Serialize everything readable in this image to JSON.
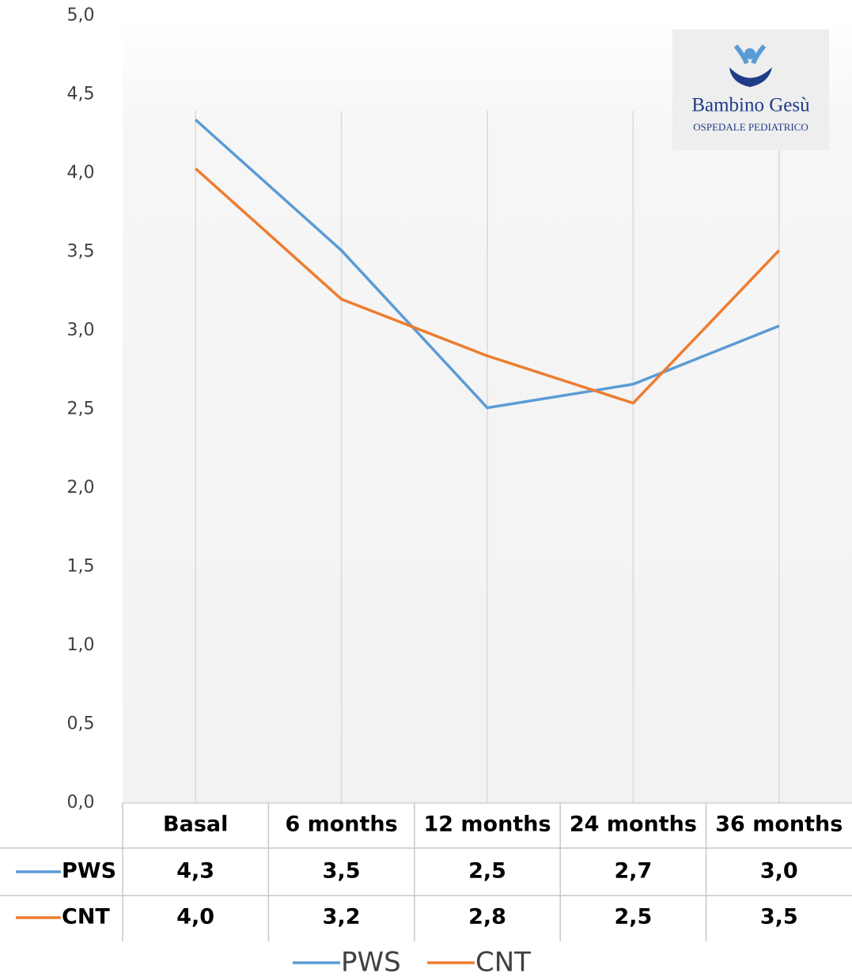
{
  "chart_data": {
    "type": "line",
    "categories": [
      "Basal",
      "6 months",
      "12 months",
      "24 months",
      "36 months"
    ],
    "series": [
      {
        "name": "PWS",
        "color": "#5b9bd5",
        "values": [
          4.34,
          3.51,
          2.51,
          2.66,
          3.03
        ],
        "value_labels": [
          "4,3",
          "3,5",
          "2,5",
          "2,7",
          "3,0"
        ]
      },
      {
        "name": "CNT",
        "color": "#ed7d31",
        "values": [
          4.03,
          3.2,
          2.84,
          2.54,
          3.51
        ],
        "value_labels": [
          "4,0",
          "3,2",
          "2,8",
          "2,5",
          "3,5"
        ]
      }
    ],
    "ylim": [
      0,
      5
    ],
    "yticks": [
      {
        "value": 0,
        "label": "0,0"
      },
      {
        "value": 0.5,
        "label": "0,5"
      },
      {
        "value": 1,
        "label": "1,0"
      },
      {
        "value": 1.5,
        "label": "1,5"
      },
      {
        "value": 2,
        "label": "2,0"
      },
      {
        "value": 2.5,
        "label": "2,5"
      },
      {
        "value": 3,
        "label": "3,0"
      },
      {
        "value": 3.5,
        "label": "3,5"
      },
      {
        "value": 4,
        "label": "4,0"
      },
      {
        "value": 4.5,
        "label": "4,5"
      },
      {
        "value": 5,
        "label": "5,0"
      }
    ],
    "logo": {
      "name": "Bambino Gesù",
      "subtitle": "OSPEDALE PEDIATRICO"
    }
  }
}
